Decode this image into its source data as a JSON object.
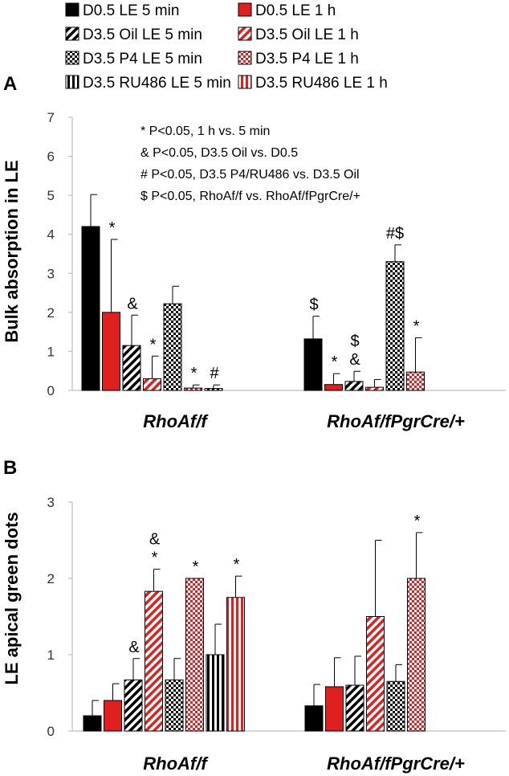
{
  "legend": [
    {
      "label": "D0.5 LE 5 min",
      "pattern": "black"
    },
    {
      "label": "D0.5 LE 1 h",
      "pattern": "red"
    },
    {
      "label": "D3.5 Oil LE 5 min",
      "pattern": "diagBlack"
    },
    {
      "label": "D3.5 Oil LE 1 h",
      "pattern": "diagRed"
    },
    {
      "label": "D3.5 P4 LE 5 min",
      "pattern": "dotBlack"
    },
    {
      "label": "D3.5 P4 LE 1 h",
      "pattern": "dotRed"
    },
    {
      "label": "D3.5 RU486 LE 5 min",
      "pattern": "vertBlack"
    },
    {
      "label": "D3.5 RU486 LE 1 h",
      "pattern": "vertRed"
    }
  ],
  "colors": {
    "black": "#000000",
    "red": "#e01f1f",
    "axis": "#bfbfbf",
    "text": "#000000"
  },
  "chart_data": [
    {
      "type": "bar",
      "panel_letter": "A",
      "ylabel": "Bulk absorption in LE",
      "ylim": [
        0,
        7
      ],
      "yticks": [
        "0",
        "1",
        "2",
        "3",
        "4",
        "5",
        "6",
        "7"
      ],
      "categories": [
        "RhoAf/f",
        "RhoAf/fPgrCre/+"
      ],
      "notes": [
        "* P<0.05,  1 h vs. 5 min",
        "& P<0.05, D3.5 Oil vs. D0.5",
        "# P<0.05, D3.5 P4/RU486 vs. D3.5 Oil",
        "$ P<0.05, RhoAf/f vs. RhoAf/fPgrCre/+"
      ],
      "series": [
        {
          "name": "D0.5 LE 5 min",
          "values": [
            4.2,
            1.32
          ],
          "errors": [
            0.82,
            0.58
          ],
          "marks": [
            "",
            "$"
          ]
        },
        {
          "name": "D0.5 LE 1 h",
          "values": [
            2.0,
            0.15
          ],
          "errors": [
            1.87,
            0.28
          ],
          "marks": [
            "*",
            "*"
          ]
        },
        {
          "name": "D3.5 Oil LE 5 min",
          "values": [
            1.15,
            0.23
          ],
          "errors": [
            0.78,
            0.26
          ],
          "marks": [
            "&",
            "$\n&"
          ]
        },
        {
          "name": "D3.5 Oil LE 1 h",
          "values": [
            0.3,
            0.08
          ],
          "errors": [
            0.58,
            0.2
          ],
          "marks": [
            "*",
            ""
          ]
        },
        {
          "name": "D3.5 P4 LE 5 min",
          "values": [
            2.22,
            3.3
          ],
          "errors": [
            0.45,
            0.43
          ],
          "marks": [
            "",
            "#$"
          ]
        },
        {
          "name": "D3.5 P4 LE 1 h",
          "values": [
            0.06,
            0.47
          ],
          "errors": [
            0.08,
            0.88
          ],
          "marks": [
            "*",
            "*"
          ]
        },
        {
          "name": "D3.5 RU486 LE 5 min",
          "values": [
            0.05,
            null
          ],
          "errors": [
            0.09,
            null
          ],
          "marks": [
            "#",
            ""
          ]
        },
        {
          "name": "D3.5 RU486 LE 1 h",
          "values": [
            null,
            null
          ],
          "errors": [
            null,
            null
          ],
          "marks": [
            "",
            ""
          ]
        }
      ]
    },
    {
      "type": "bar",
      "panel_letter": "B",
      "ylabel": "LE apical green dots",
      "ylim": [
        0,
        3
      ],
      "yticks": [
        "0",
        "1",
        "2",
        "3"
      ],
      "categories": [
        "RhoAf/f",
        "RhoAf/fPgrCre/+"
      ],
      "series": [
        {
          "name": "D0.5 LE 5 min",
          "values": [
            0.2,
            0.33
          ],
          "errors": [
            0.2,
            0.28
          ],
          "marks": [
            "",
            ""
          ]
        },
        {
          "name": "D0.5 LE 1 h",
          "values": [
            0.4,
            0.58
          ],
          "errors": [
            0.22,
            0.38
          ],
          "marks": [
            "",
            ""
          ]
        },
        {
          "name": "D3.5 Oil LE 5 min",
          "values": [
            0.67,
            0.6
          ],
          "errors": [
            0.28,
            0.38
          ],
          "marks": [
            "&",
            ""
          ]
        },
        {
          "name": "D3.5 Oil LE 1 h",
          "values": [
            1.83,
            1.5
          ],
          "errors": [
            0.29,
            1.0
          ],
          "marks": [
            "&\n*",
            ""
          ]
        },
        {
          "name": "D3.5 P4 LE 5 min",
          "values": [
            0.67,
            0.65
          ],
          "errors": [
            0.28,
            0.22
          ],
          "marks": [
            "",
            ""
          ]
        },
        {
          "name": "D3.5 P4 LE 1 h",
          "values": [
            2.0,
            2.0
          ],
          "errors": [
            0.0,
            0.6
          ],
          "marks": [
            "*",
            "*"
          ]
        },
        {
          "name": "D3.5 RU486 LE 5 min",
          "values": [
            1.0,
            null
          ],
          "errors": [
            0.4,
            null
          ],
          "marks": [
            "",
            ""
          ]
        },
        {
          "name": "D3.5 RU486 LE 1 h",
          "values": [
            1.75,
            null
          ],
          "errors": [
            0.28,
            null
          ],
          "marks": [
            "*",
            ""
          ]
        }
      ]
    }
  ]
}
